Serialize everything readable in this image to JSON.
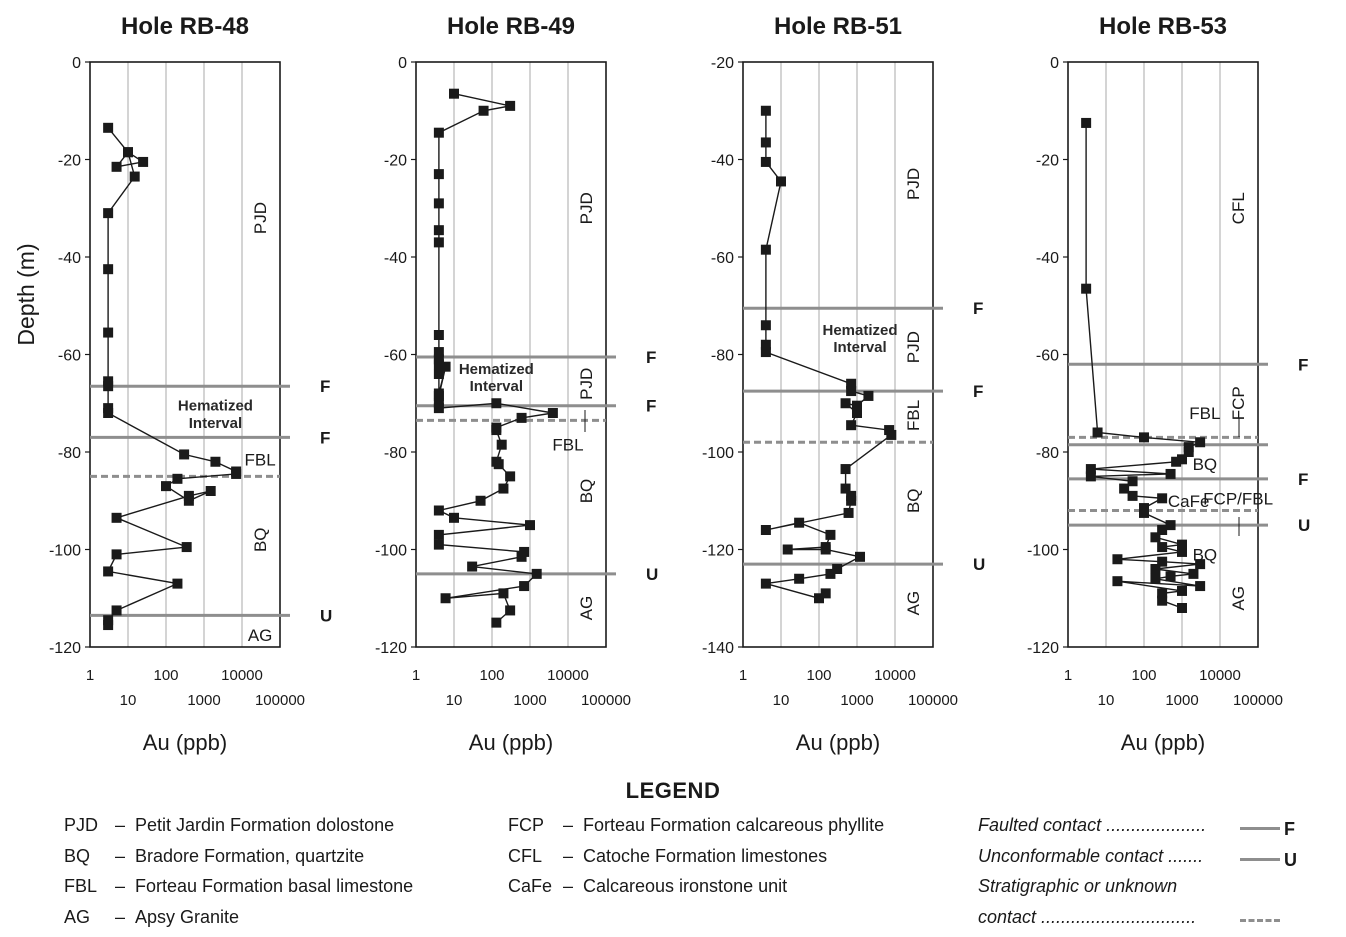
{
  "chart_data": [
    {
      "type": "line",
      "title": "Hole RB-48",
      "xlabel": "Au (ppb)",
      "ylabel": "Depth (m)",
      "xscale": "log",
      "xlim": [
        1,
        100000
      ],
      "ylim": [
        -120,
        0
      ],
      "x_ticks_top": [
        "1",
        "100",
        "10000"
      ],
      "x_ticks_bottom": [
        "10",
        "1000",
        "100000"
      ],
      "y_ticks": [
        "0",
        "-20",
        "-40",
        "-60",
        "-80",
        "-100",
        "-120"
      ],
      "grid": "vertical",
      "series": [
        {
          "x": [
            3,
            10,
            25,
            5,
            10,
            15,
            3,
            3,
            3,
            3,
            3,
            3,
            3,
            300,
            2000,
            7000,
            7000,
            200,
            100,
            400,
            1500,
            400,
            5,
            350,
            5,
            3,
            200,
            5,
            3,
            3
          ],
          "y": [
            -13.5,
            -18.5,
            -20.5,
            -21.5,
            -18.5,
            -23.5,
            -31,
            -42.5,
            -55.5,
            -65.5,
            -66.5,
            -71,
            -72,
            -80.5,
            -82,
            -84,
            -84.5,
            -85.5,
            -87,
            -90,
            -88,
            -89,
            -93.5,
            -99.5,
            -101,
            -104.5,
            -107,
            -112.5,
            -114.5,
            -115.5
          ]
        }
      ],
      "contacts": [
        {
          "depth": -66.5,
          "style": "solid",
          "label": "F"
        },
        {
          "depth": -77,
          "style": "solid",
          "label": "F"
        },
        {
          "depth": -85,
          "style": "dashed",
          "label": ""
        },
        {
          "depth": -113.5,
          "style": "solid",
          "label": "U"
        }
      ],
      "units": [
        {
          "label": "PJD",
          "x": 30000,
          "y": -32,
          "rotated": true
        },
        {
          "label": "FBL",
          "x": 30000,
          "y": -81.5,
          "rotated": false
        },
        {
          "label": "BQ",
          "x": 30000,
          "y": -98,
          "rotated": true
        },
        {
          "label": "AG",
          "x": 30000,
          "y": -117.5,
          "rotated": false
        }
      ],
      "annotations": [
        {
          "text": "Hematized",
          "x": 2000,
          "y": -70.5
        },
        {
          "text": "Interval",
          "x": 2000,
          "y": -74
        }
      ]
    },
    {
      "type": "line",
      "title": "Hole RB-49",
      "xlabel": "Au (ppb)",
      "xscale": "log",
      "xlim": [
        1,
        100000
      ],
      "ylim": [
        -120,
        0
      ],
      "x_ticks_top": [
        "1",
        "100",
        "10000"
      ],
      "x_ticks_bottom": [
        "10",
        "1000",
        "100000"
      ],
      "y_ticks": [
        "0",
        "-20",
        "-40",
        "-60",
        "-80",
        "-100",
        "-120"
      ],
      "grid": "vertical",
      "series": [
        {
          "x": [
            10,
            300,
            60,
            4,
            4,
            4,
            4,
            4,
            4,
            4,
            4,
            4,
            4,
            4,
            6,
            4,
            4,
            4,
            130,
            4000,
            600,
            130,
            130,
            180,
            130,
            150,
            300,
            200,
            50,
            4,
            10,
            1000,
            4,
            4,
            700,
            600,
            30,
            1500,
            700,
            6,
            200,
            300,
            130
          ],
          "y": [
            -6.5,
            -9,
            -10,
            -14.5,
            -23,
            -29,
            -34.5,
            -37,
            -56,
            -59.5,
            -61,
            -62,
            -64,
            -68,
            -62.5,
            -68.5,
            -70,
            -71,
            -70,
            -72,
            -73,
            -75,
            -75.5,
            -78.5,
            -82,
            -82.5,
            -85,
            -87.5,
            -90,
            -92,
            -93.5,
            -95,
            -97,
            -99,
            -100.5,
            -101.5,
            -103.5,
            -105,
            -107.5,
            -110,
            -109,
            -112.5,
            -115
          ]
        }
      ],
      "contacts": [
        {
          "depth": -60.5,
          "style": "solid",
          "label": "F"
        },
        {
          "depth": -70.5,
          "style": "solid",
          "label": "F"
        },
        {
          "depth": -73.5,
          "style": "dashed",
          "label": ""
        },
        {
          "depth": -105,
          "style": "solid",
          "label": "U"
        }
      ],
      "units": [
        {
          "label": "PJD",
          "x": 30000,
          "y": -30,
          "rotated": true
        },
        {
          "label": "PJD",
          "x": 30000,
          "y": -66,
          "rotated": true
        },
        {
          "label": "FBL",
          "x": 10000,
          "y": -78.5,
          "rotated": false
        },
        {
          "label": "BQ",
          "x": 30000,
          "y": -88,
          "rotated": true
        },
        {
          "label": "AG",
          "x": 30000,
          "y": -112,
          "rotated": true
        }
      ],
      "annotations": [
        {
          "text": "Hematized",
          "x": 130,
          "y": -63
        },
        {
          "text": "Interval",
          "x": 130,
          "y": -66.5
        }
      ]
    },
    {
      "type": "line",
      "title": "Hole RB-51",
      "xlabel": "Au (ppb)",
      "xscale": "log",
      "xlim": [
        1,
        100000
      ],
      "ylim": [
        -140,
        -20
      ],
      "x_ticks_top": [
        "1",
        "100",
        "10000"
      ],
      "x_ticks_bottom": [
        "10",
        "1000",
        "100000"
      ],
      "y_ticks": [
        "-20",
        "-40",
        "-60",
        "-80",
        "-100",
        "-120",
        "-140"
      ],
      "grid": "vertical",
      "series": [
        {
          "x": [
            4,
            4,
            4,
            10,
            4,
            4,
            4,
            4,
            700,
            700,
            2000,
            1000,
            500,
            1000,
            700,
            7000,
            8000,
            500,
            500,
            700,
            700,
            600,
            4,
            30,
            200,
            150,
            15,
            150,
            1200,
            300,
            200,
            30,
            4,
            100,
            150
          ],
          "y": [
            -30,
            -36.5,
            -40.5,
            -44.5,
            -58.5,
            -74,
            -78,
            -79.5,
            -86,
            -87.5,
            -88.5,
            -90.5,
            -90,
            -92,
            -94.5,
            -95.5,
            -96.5,
            -103.5,
            -107.5,
            -109,
            -110,
            -112.5,
            -116,
            -114.5,
            -117,
            -119.5,
            -120,
            -120,
            -121.5,
            -124,
            -125,
            -126,
            -127,
            -130,
            -129
          ]
        }
      ],
      "contacts": [
        {
          "depth": -70.5,
          "style": "solid",
          "label": "F"
        },
        {
          "depth": -87.5,
          "style": "solid",
          "label": "F"
        },
        {
          "depth": -98,
          "style": "dashed",
          "label": ""
        },
        {
          "depth": -123,
          "style": "solid",
          "label": "U"
        }
      ],
      "units": [
        {
          "label": "PJD",
          "x": 30000,
          "y": -45,
          "rotated": true
        },
        {
          "label": "PJD",
          "x": 30000,
          "y": -78.5,
          "rotated": true
        },
        {
          "label": "FBL",
          "x": 30000,
          "y": -92.5,
          "rotated": true
        },
        {
          "label": "BQ",
          "x": 30000,
          "y": -110,
          "rotated": true
        },
        {
          "label": "AG",
          "x": 30000,
          "y": -131,
          "rotated": true
        }
      ],
      "annotations": [
        {
          "text": "Hematized",
          "x": 1200,
          "y": -75
        },
        {
          "text": "Interval",
          "x": 1200,
          "y": -78.5
        }
      ]
    },
    {
      "type": "line",
      "title": "Hole RB-53",
      "xlabel": "Au (ppb)",
      "xscale": "log",
      "xlim": [
        1,
        100000
      ],
      "ylim": [
        -120,
        0
      ],
      "x_ticks_top": [
        "1",
        "100",
        "10000"
      ],
      "x_ticks_bottom": [
        "10",
        "1000",
        "100000"
      ],
      "y_ticks": [
        "0",
        "-20",
        "-40",
        "-60",
        "-80",
        "-100",
        "-120"
      ],
      "grid": "vertical",
      "series": [
        {
          "x": [
            3,
            3,
            6,
            100,
            3000,
            1500,
            1500,
            1000,
            700,
            4,
            500,
            4,
            50,
            30,
            50,
            300,
            100,
            100,
            500,
            300,
            200,
            1000,
            300,
            1000,
            20,
            300,
            3000,
            200,
            2000,
            500,
            200,
            3000,
            20,
            1000,
            300,
            300,
            1000
          ],
          "y": [
            -12.5,
            -46.5,
            -76,
            -77,
            -78,
            -79,
            -80,
            -81.5,
            -82,
            -83.5,
            -84.5,
            -85,
            -86,
            -87.5,
            -89,
            -89.5,
            -91.5,
            -92.5,
            -95,
            -96,
            -97.5,
            -99,
            -99.5,
            -100.5,
            -102,
            -102.5,
            -103,
            -104,
            -105,
            -105.5,
            -106,
            -107.5,
            -106.5,
            -108.5,
            -109,
            -110.5,
            -112
          ]
        }
      ],
      "contacts": [
        {
          "depth": -62,
          "style": "solid",
          "label": "F"
        },
        {
          "depth": -77,
          "style": "dashed",
          "label": ""
        },
        {
          "depth": -78.5,
          "style": "solid",
          "label": ""
        },
        {
          "depth": -85.5,
          "style": "solid",
          "label": "F"
        },
        {
          "depth": -92,
          "style": "dashed",
          "label": ""
        },
        {
          "depth": -95,
          "style": "solid",
          "label": "U"
        }
      ],
      "units": [
        {
          "label": "CFL",
          "x": 30000,
          "y": -30,
          "rotated": true
        },
        {
          "label": "FCP",
          "x": 30000,
          "y": -70,
          "rotated": true
        },
        {
          "label": "FBL",
          "x": 4000,
          "y": -72,
          "rotated": false
        },
        {
          "label": "BQ",
          "x": 4000,
          "y": -82.5,
          "rotated": false
        },
        {
          "label": "FCP/FBL",
          "x": 30000,
          "y": -89.5,
          "rotated": false
        },
        {
          "label": "CaFe",
          "x": 1500,
          "y": -90,
          "rotated": false
        },
        {
          "label": "BQ",
          "x": 4000,
          "y": -101,
          "rotated": false
        },
        {
          "label": "AG",
          "x": 30000,
          "y": -110,
          "rotated": true
        }
      ],
      "annotations": []
    }
  ],
  "legend": {
    "title": "LEGEND",
    "units_col1": [
      {
        "abbr": "PJD",
        "desc": "Petit Jardin Formation dolostone"
      },
      {
        "abbr": "BQ",
        "desc": "Bradore Formation, quartzite"
      },
      {
        "abbr": "FBL",
        "desc": "Forteau Formation basal limestone"
      },
      {
        "abbr": "AG",
        "desc": "Apsy Granite"
      }
    ],
    "units_col2": [
      {
        "abbr": "FCP",
        "desc": "Forteau Formation calcareous phyllite"
      },
      {
        "abbr": "CFL",
        "desc": "Catoche Formation limestones"
      },
      {
        "abbr": "CaFe",
        "desc": "Calcareous ironstone unit"
      }
    ],
    "dash": "–",
    "contacts": [
      {
        "label": "Faulted contact ....................",
        "line": "solid",
        "letter": "F"
      },
      {
        "label": "Unconformable contact .......",
        "line": "solid",
        "letter": "U"
      },
      {
        "label": "Stratigraphic or unknown",
        "line": "",
        "letter": ""
      },
      {
        "label": "contact ...............................",
        "line": "dashed",
        "letter": ""
      }
    ]
  }
}
